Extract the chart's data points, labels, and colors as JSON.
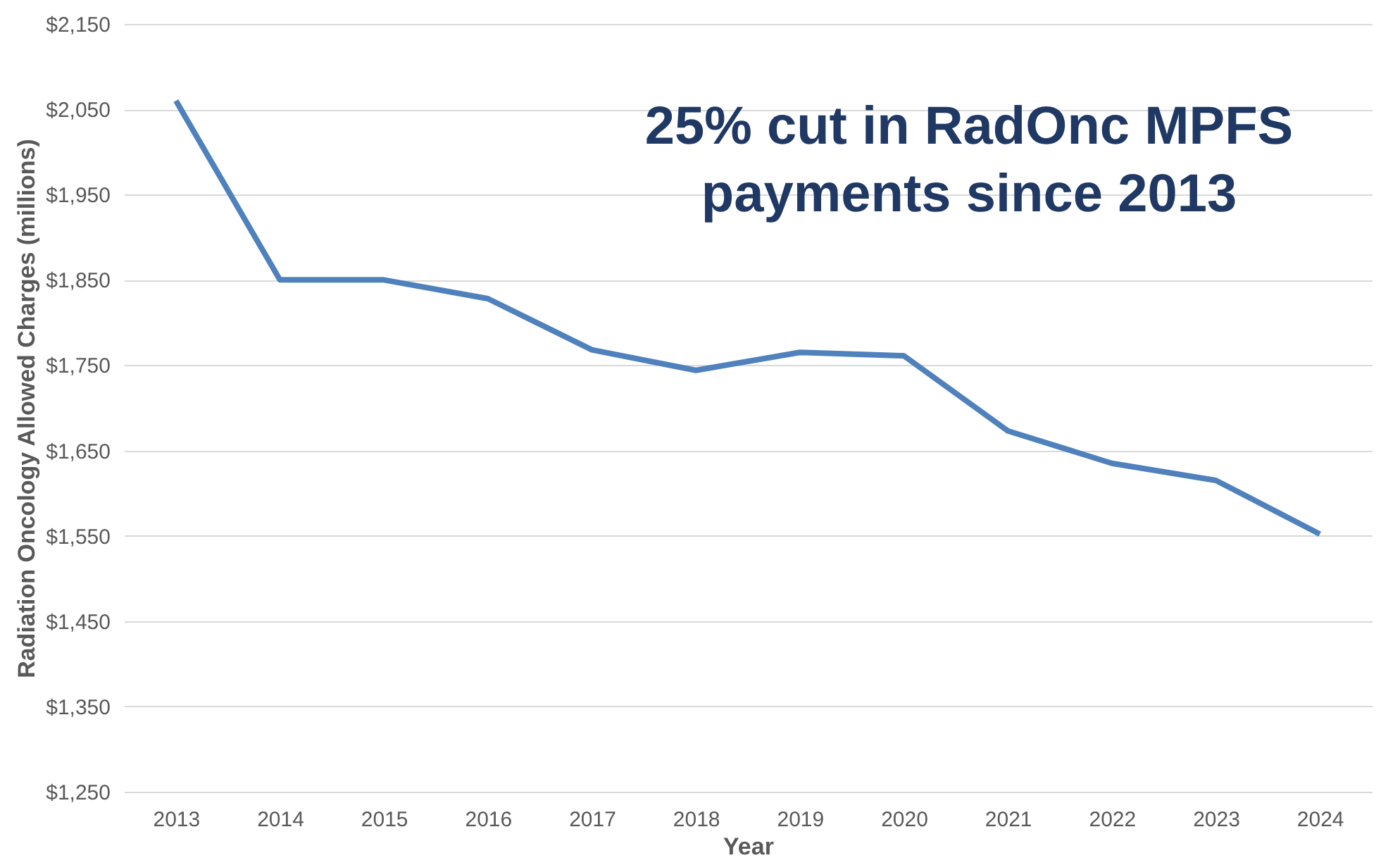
{
  "chart_data": {
    "type": "line",
    "xlabel": "Year",
    "ylabel": "Radiation Oncology Allowed Charges (millions)",
    "categories": [
      "2013",
      "2014",
      "2015",
      "2016",
      "2017",
      "2018",
      "2019",
      "2020",
      "2021",
      "2022",
      "2023",
      "2024"
    ],
    "series": [
      {
        "color": "#4f81bd",
        "values": [
          2060,
          1850,
          1850,
          1828,
          1768,
          1744,
          1765,
          1761,
          1673,
          1635,
          1615,
          1552
        ]
      }
    ],
    "ylim": [
      1250,
      2150
    ],
    "yticks": [
      {
        "value": 1250,
        "label": "$1,250"
      },
      {
        "value": 1350,
        "label": "$1,350"
      },
      {
        "value": 1450,
        "label": "$1,450"
      },
      {
        "value": 1550,
        "label": "$1,550"
      },
      {
        "value": 1650,
        "label": "$1,650"
      },
      {
        "value": 1750,
        "label": "$1,750"
      },
      {
        "value": 1850,
        "label": "$1,850"
      },
      {
        "value": 1950,
        "label": "$1,950"
      },
      {
        "value": 2050,
        "label": "$2,050"
      },
      {
        "value": 2150,
        "label": "$2,150"
      }
    ],
    "grid": "y",
    "marker": "none",
    "line_style": "solid",
    "legend": false,
    "annotations": [
      "25% cut in RadOnc MPFS payments since 2013"
    ]
  }
}
